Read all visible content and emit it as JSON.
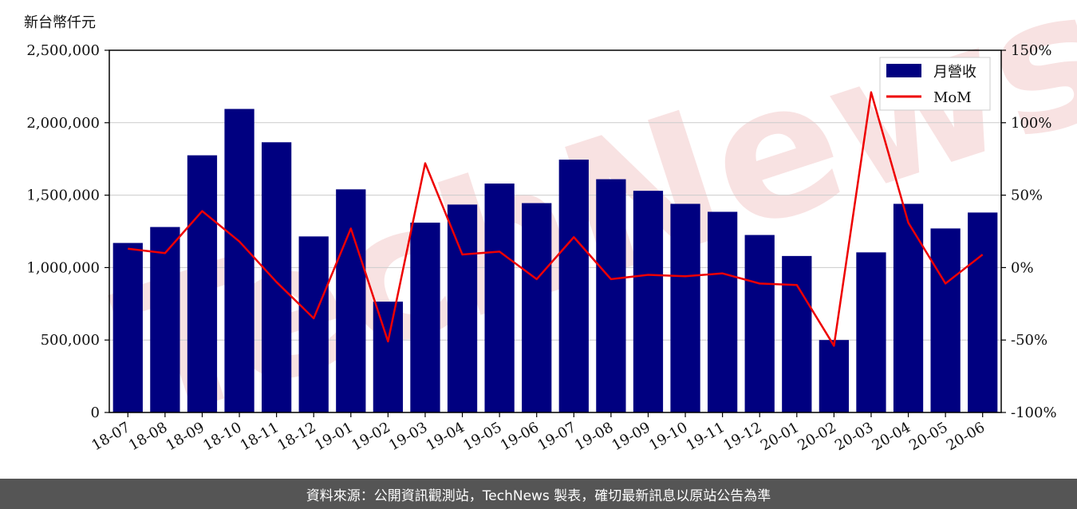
{
  "y_unit_label": "新台幣仟元",
  "footer_text": "資料來源：公開資訊觀測站，TechNews 製表，確切最新訊息以原站公告為準",
  "watermark_text": "TechNews",
  "colors": {
    "bar": "#000080",
    "line": "#ee0000",
    "footer_bg": "#555555",
    "grid": "#cccccc",
    "watermark": "#f4cccc"
  },
  "chart_data": {
    "type": "bar",
    "categories": [
      "18-07",
      "18-08",
      "18-09",
      "18-10",
      "18-11",
      "18-12",
      "19-01",
      "19-02",
      "19-03",
      "19-04",
      "19-05",
      "19-06",
      "19-07",
      "19-08",
      "19-09",
      "19-10",
      "19-11",
      "19-12",
      "20-01",
      "20-02",
      "20-03",
      "20-04",
      "20-05",
      "20-06"
    ],
    "series": [
      {
        "name": "月營收",
        "type": "bar",
        "axis": "left",
        "values": [
          1170000,
          1280000,
          1775000,
          2095000,
          1865000,
          1215000,
          1540000,
          765000,
          1310000,
          1435000,
          1580000,
          1445000,
          1745000,
          1610000,
          1530000,
          1440000,
          1385000,
          1225000,
          1080000,
          500000,
          1105000,
          1440000,
          1270000,
          1380000
        ]
      },
      {
        "name": "MoM",
        "type": "line",
        "axis": "right",
        "values": [
          13,
          10,
          39,
          18,
          -10,
          -35,
          27,
          -51,
          72,
          9,
          11,
          -8,
          21,
          -8,
          -5,
          -6,
          -4,
          -11,
          -12,
          -54,
          121,
          31,
          -11,
          9
        ]
      }
    ],
    "ylim_left": [
      0,
      2500000
    ],
    "ylim_right": [
      -100,
      150
    ],
    "yticks_left": [
      "0",
      "500,000",
      "1,000,000",
      "1,500,000",
      "2,000,000",
      "2,500,000"
    ],
    "yticks_right": [
      "-100%",
      "-50%",
      "0%",
      "50%",
      "100%",
      "150%"
    ],
    "grid": "horizontal",
    "legend_position": "top-right"
  }
}
